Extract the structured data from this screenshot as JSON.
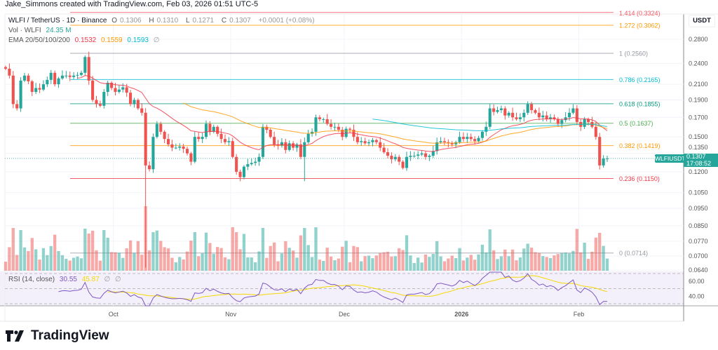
{
  "caption": "Jake_Simmons created with TradingView.com, Feb 03, 2026 01:51 UTC-5",
  "legend": {
    "symbol": "WLFI / TetherUS · 1D · Binance",
    "open_label": "O",
    "open": "0.1306",
    "high_label": "H",
    "high": "0.1310",
    "low_label": "L",
    "low": "0.1271",
    "close_label": "C",
    "close": "0.1307",
    "change": "+0.0001 (+0.08%)",
    "vol_label": "Vol · WLFI",
    "vol": "24.35 M",
    "ema_label": "EMA 20/50/100/200",
    "ema20": "0.1532",
    "ema50": "0.1559",
    "ema100": "0.1593",
    "ema200": "∅",
    "rsi_label": "RSI (14, close)",
    "rsi": "30.55",
    "rsi_ma": "45.87",
    "rsi_extra1": "∅",
    "rsi_extra2": "∅"
  },
  "axis": {
    "currency": "USDT",
    "price_ticks": [
      "0.2800",
      "0.2400",
      "0.2100",
      "0.1900",
      "0.1700",
      "0.1500",
      "0.1350",
      "0.1200",
      "0.1050",
      "0.0950",
      "0.0850",
      "0.0770",
      "0.0700",
      "0.0640"
    ],
    "rsi_ticks": [
      "60.00",
      "40.00"
    ],
    "time_labels": [
      "Oct",
      "Nov",
      "Dec",
      "2026",
      "Feb"
    ]
  },
  "last_price": {
    "symbol": "WLFIUSDT",
    "price": "0.1307",
    "countdown": "17:08:52"
  },
  "fib_levels": [
    {
      "label": "1.414 (0.3324)",
      "price": 0.3324,
      "color": "#f7525f"
    },
    {
      "label": "1.272 (0.3062)",
      "price": 0.3062,
      "color": "#ff9800"
    },
    {
      "label": "1 (0.2560)",
      "price": 0.256,
      "color": "#9598a1"
    },
    {
      "label": "0.786 (0.2165)",
      "price": 0.2165,
      "color": "#00bcd4"
    },
    {
      "label": "0.618 (0.1855)",
      "price": 0.1855,
      "color": "#089981"
    },
    {
      "label": "0.5 (0.1637)",
      "price": 0.1637,
      "color": "#4caf50"
    },
    {
      "label": "0.382 (0.1419)",
      "price": 0.1419,
      "color": "#ff9800"
    },
    {
      "label": "0.236 (0.1150)",
      "price": 0.115,
      "color": "#f23645"
    },
    {
      "label": "0 (0.0714)",
      "price": 0.0714,
      "color": "#9598a1"
    }
  ],
  "colors": {
    "up": "#26a69a",
    "down": "#ef5350",
    "ema20": "#f23645",
    "ema50": "#ff9800",
    "ema100": "#00bcd4",
    "rsi": "#7e57c2",
    "rsi_ma": "#f5d800"
  },
  "chart_data": {
    "type": "candlestick",
    "interval": "1D",
    "scale": "log",
    "ylim": [
      0.064,
      0.29
    ],
    "grid": true,
    "x_tick_labels": [
      "Oct",
      "Nov",
      "Dec",
      "2026",
      "Feb"
    ],
    "closes": [
      0.232,
      0.222,
      0.185,
      0.18,
      0.215,
      0.222,
      0.214,
      0.2,
      0.205,
      0.203,
      0.21,
      0.216,
      0.226,
      0.21,
      0.218,
      0.222,
      0.222,
      0.22,
      0.222,
      0.223,
      0.226,
      0.25,
      0.215,
      0.19,
      0.185,
      0.183,
      0.2,
      0.212,
      0.205,
      0.2,
      0.203,
      0.206,
      0.199,
      0.185,
      0.19,
      0.18,
      0.175,
      0.125,
      0.122,
      0.15,
      0.163,
      0.155,
      0.148,
      0.143,
      0.14,
      0.14,
      0.141,
      0.139,
      0.135,
      0.128,
      0.15,
      0.148,
      0.15,
      0.163,
      0.155,
      0.16,
      0.153,
      0.148,
      0.145,
      0.146,
      0.132,
      0.12,
      0.116,
      0.124,
      0.126,
      0.127,
      0.128,
      0.132,
      0.16,
      0.157,
      0.15,
      0.143,
      0.142,
      0.145,
      0.138,
      0.144,
      0.14,
      0.143,
      0.132,
      0.145,
      0.153,
      0.155,
      0.17,
      0.168,
      0.168,
      0.163,
      0.16,
      0.16,
      0.157,
      0.15,
      0.158,
      0.157,
      0.15,
      0.145,
      0.146,
      0.144,
      0.145,
      0.147,
      0.145,
      0.14,
      0.136,
      0.133,
      0.13,
      0.132,
      0.128,
      0.123,
      0.132,
      0.133,
      0.133,
      0.134,
      0.135,
      0.132,
      0.133,
      0.137,
      0.145,
      0.146,
      0.145,
      0.144,
      0.143,
      0.145,
      0.15,
      0.148,
      0.15,
      0.148,
      0.146,
      0.149,
      0.155,
      0.16,
      0.18,
      0.176,
      0.178,
      0.18,
      0.172,
      0.175,
      0.17,
      0.168,
      0.17,
      0.175,
      0.185,
      0.178,
      0.175,
      0.17,
      0.172,
      0.168,
      0.17,
      0.168,
      0.163,
      0.167,
      0.17,
      0.175,
      0.18,
      0.165,
      0.16,
      0.168,
      0.165,
      0.16,
      0.15,
      0.125,
      0.1306,
      0.1307
    ],
    "rsi_levels": [
      70,
      50,
      30
    ]
  }
}
